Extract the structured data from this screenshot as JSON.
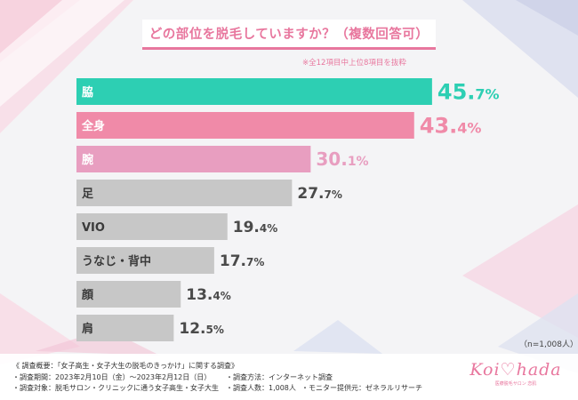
{
  "title": "どの部位を脱毛していますか？（複数回答可）",
  "note": "※全12項目中上位8項目を抜粋",
  "sample_size": "（n=1,008人）",
  "colors": {
    "pink": "#e8779e",
    "teal": "#2dcfb3",
    "pink_mid": "#f08aa8",
    "pink_light": "#e89ec0",
    "gray": "#c7c7c7"
  },
  "chart_data": {
    "type": "bar",
    "orientation": "horizontal",
    "categories": [
      "脇",
      "全身",
      "腕",
      "足",
      "VIO",
      "うなじ・背中",
      "顔",
      "肩"
    ],
    "values": [
      45.7,
      43.4,
      30.1,
      27.7,
      19.4,
      17.7,
      13.4,
      12.5
    ],
    "value_suffix": "%",
    "bar_colors": [
      "#2dcfb3",
      "#f08aa8",
      "#e89ec0",
      "#c7c7c7",
      "#c7c7c7",
      "#c7c7c7",
      "#c7c7c7",
      "#c7c7c7"
    ],
    "label_colors": [
      "#2dcfb3",
      "#f08aa8",
      "#e89ec0",
      "#4a4a4a",
      "#4a4a4a",
      "#4a4a4a",
      "#4a4a4a",
      "#4a4a4a"
    ],
    "xlim": [
      0,
      50
    ],
    "grid": false,
    "legend": "none"
  },
  "footer": {
    "heading": "《 調査概要：「女子高生・女子大生の脱毛のきっかけ」に関する調査》",
    "period": "・調査期間：2023年2月10日（金）〜2023年2月12日（日）",
    "method": "・調査方法：インターネット調査",
    "target": "・調査対象：脱毛サロン・クリニックに通う女子高生・女子大生",
    "count": "・調査人数：1,008人",
    "provider": "・モニター提供元：ゼネラルリサーチ"
  },
  "logo": {
    "word": "Koi♡hada",
    "sub": "医療脱毛サロン 恋肌"
  }
}
